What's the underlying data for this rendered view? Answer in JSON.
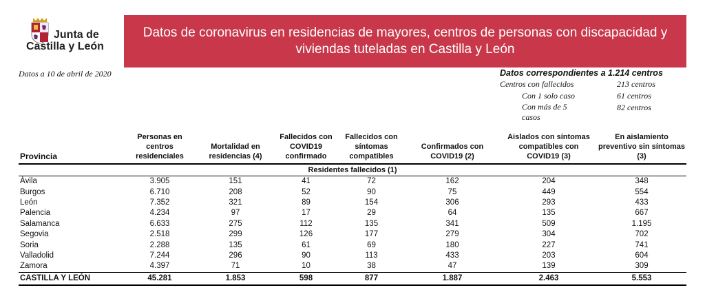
{
  "logo": {
    "line1": "Junta de",
    "line2": "Castilla y León"
  },
  "banner": {
    "title": "Datos de coronavirus en residencias de mayores, centros de personas con discapacidad y viviendas tuteladas en Castilla y León"
  },
  "date": "Datos a 10 de abril de 2020",
  "summary": {
    "heading": "Datos correspondientes a 1.214 centros",
    "rows": [
      {
        "label": "Centros con fallecidos",
        "value": "213 centros"
      },
      {
        "label": "Con 1 solo caso",
        "value": "61 centros"
      },
      {
        "label": "Con más de 5 casos",
        "value": "82 centros"
      }
    ]
  },
  "table": {
    "headers": [
      "Provincia",
      "Personas en centros residenciales",
      "Mortalidad en residencias  (4)",
      "Fallecidos con COVID19 confirmado",
      "Fallecidos con síntomas compatibles",
      "Confirmados con COVID19 (2)",
      "Aislados con síntomas compatibles con COVID19 (3)",
      "En aislamiento preventivo sin síntomas (3)"
    ],
    "subheader": "Residentes fallecidos (1)",
    "rows": [
      [
        "Ávila",
        "3.905",
        "151",
        "41",
        "72",
        "162",
        "204",
        "348"
      ],
      [
        "Burgos",
        "6.710",
        "208",
        "52",
        "90",
        "75",
        "449",
        "554"
      ],
      [
        "León",
        "7.352",
        "321",
        "89",
        "154",
        "306",
        "293",
        "433"
      ],
      [
        "Palencia",
        "4.234",
        "97",
        "17",
        "29",
        "64",
        "135",
        "667"
      ],
      [
        "Salamanca",
        "6.633",
        "275",
        "112",
        "135",
        "341",
        "509",
        "1.195"
      ],
      [
        "Segovia",
        "2.518",
        "299",
        "126",
        "177",
        "279",
        "304",
        "702"
      ],
      [
        "Soria",
        "2.288",
        "135",
        "61",
        "69",
        "180",
        "227",
        "741"
      ],
      [
        "Valladolid",
        "7.244",
        "296",
        "90",
        "113",
        "433",
        "203",
        "604"
      ],
      [
        "Zamora",
        "4.397",
        "71",
        "10",
        "38",
        "47",
        "139",
        "309"
      ]
    ],
    "total": [
      "CASTILLA Y LEÓN",
      "45.281",
      "1.853",
      "598",
      "877",
      "1.887",
      "2.463",
      "5.553"
    ]
  },
  "colors": {
    "banner": "#c8384a",
    "shield_red": "#b22234",
    "shield_purple": "#6b2c6e"
  }
}
